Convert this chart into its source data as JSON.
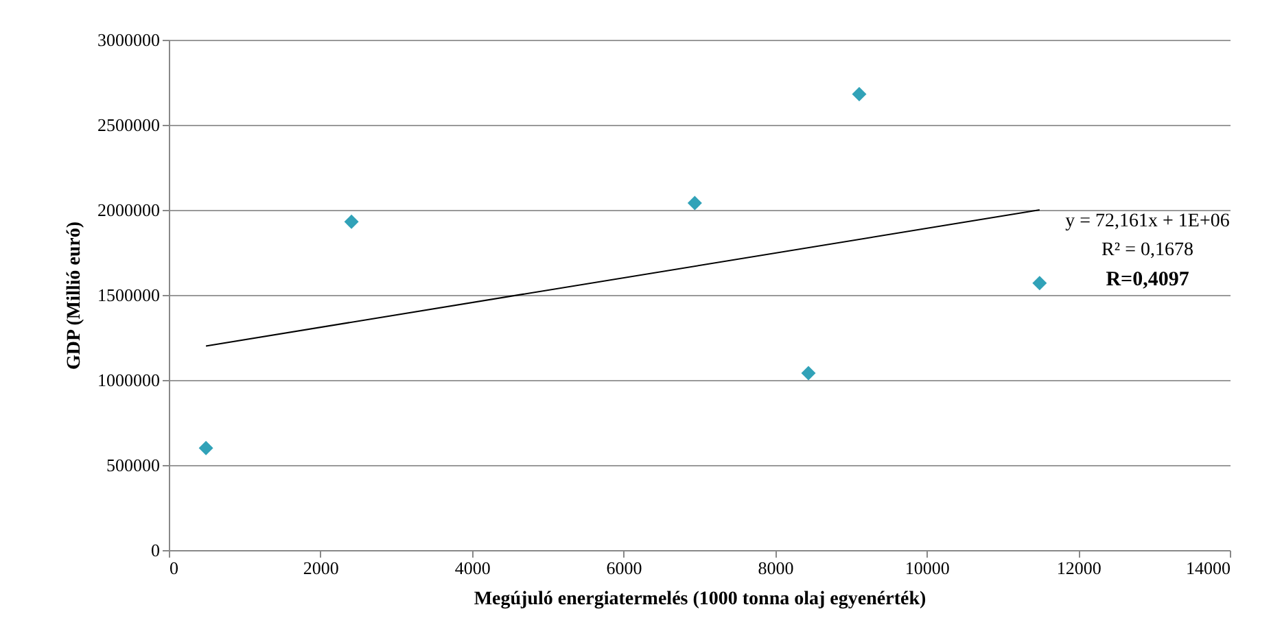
{
  "chart_data": {
    "type": "scatter",
    "xlabel": "Megújuló energiatermelés (1000 tonna olaj egyenérték)",
    "ylabel": "GDP (Millió euró)",
    "xlim": [
      0,
      14000
    ],
    "xticks": [
      0,
      2000,
      4000,
      6000,
      8000,
      10000,
      12000,
      14000
    ],
    "ylim": [
      0,
      3000000
    ],
    "yticks": [
      0,
      500000,
      1000000,
      1500000,
      2000000,
      2500000,
      3000000
    ],
    "grid": "y",
    "series": [
      {
        "color": "#31a2b8",
        "marker": "diamond",
        "x": [
          490,
          2410,
          6940,
          8440,
          9110,
          11490
        ],
        "values": [
          600000,
          1930000,
          2040000,
          1040000,
          2680000,
          1570000
        ]
      },
      {
        "type": "line",
        "marker": "none",
        "color": "#000000",
        "x": [
          490,
          11490
        ],
        "values": [
          1200000,
          2000000
        ]
      }
    ],
    "annotations": [
      "y = 72,161x + 1E+06",
      "R² = 0,1678",
      "R=0,4097"
    ]
  }
}
